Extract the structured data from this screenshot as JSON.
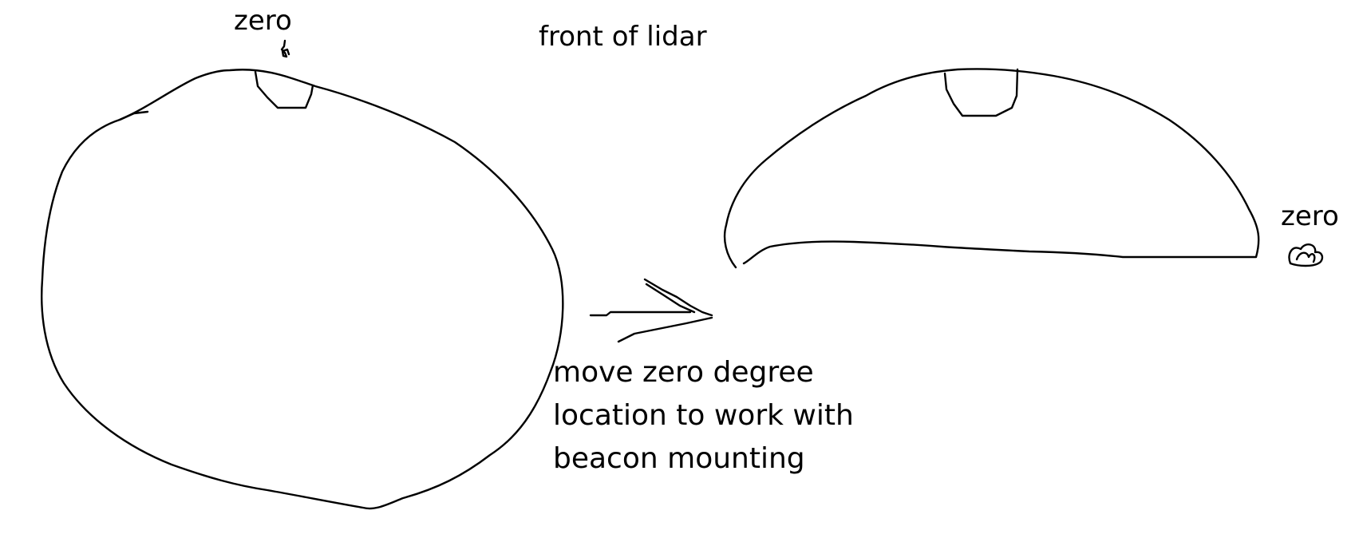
{
  "labels": {
    "zero_left": "zero",
    "front_of_lidar": "front of lidar",
    "zero_right": "zero",
    "note_lines": [
      "move zero degree",
      "location to work with",
      "beacon mounting"
    ]
  },
  "colors": {
    "background": "#ffffff",
    "ink": "#000000"
  }
}
